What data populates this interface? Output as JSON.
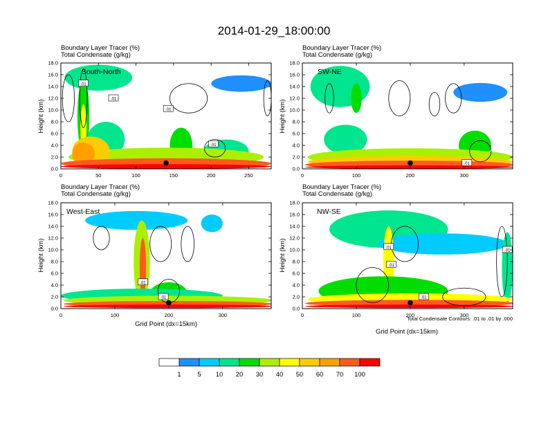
{
  "title": "2014-01-29_18:00:00",
  "colors": {
    "levels": [
      "#ffffff",
      "#1e90ff",
      "#00ccff",
      "#00e58e",
      "#00dd00",
      "#aaf000",
      "#ffff00",
      "#ffcc00",
      "#ffa000",
      "#ff5a1e",
      "#ff0000"
    ],
    "contour": "#000000",
    "frame": "#000000"
  },
  "chart_data": [
    {
      "type": "heatmap",
      "name": "South-North",
      "title_lines": [
        "Boundary Layer Tracer   (%)",
        "Total Condensate   (g/kg)"
      ],
      "region_label": "South-North",
      "xlim": [
        0,
        280
      ],
      "xticks": [
        0,
        50,
        100,
        150,
        200,
        250
      ],
      "ylim": [
        0,
        18
      ],
      "yticks": [
        "0.0",
        "2.0",
        "4.0",
        "6.0",
        "8.0",
        "10.0",
        "12.0",
        "14.0",
        "16.0",
        "18.0"
      ],
      "ylabel": "Height (km)",
      "xlabel": "",
      "contour_labels": [
        {
          "x": 30,
          "y": 14.5,
          "text": ".01"
        },
        {
          "x": 70,
          "y": 12.0,
          "text": ".01"
        },
        {
          "x": 143,
          "y": 10.2,
          "text": ".01"
        },
        {
          "x": 203,
          "y": 4.2,
          "text": ".01"
        }
      ],
      "marker": {
        "x": 140,
        "y": 1.0
      },
      "blobs": [
        {
          "c": 3,
          "x": 50,
          "y": 15.5,
          "rx": 45,
          "ry": 2.2
        },
        {
          "c": 1,
          "x": 240,
          "y": 14.5,
          "rx": 40,
          "ry": 1.4
        },
        {
          "c": 4,
          "x": 30,
          "y": 9,
          "rx": 8,
          "ry": 6
        },
        {
          "c": 6,
          "x": 30,
          "y": 7,
          "rx": 4,
          "ry": 4
        },
        {
          "c": 3,
          "x": 60,
          "y": 5,
          "rx": 25,
          "ry": 3
        },
        {
          "c": 4,
          "x": 160,
          "y": 4,
          "rx": 15,
          "ry": 3
        },
        {
          "c": 3,
          "x": 220,
          "y": 3,
          "rx": 30,
          "ry": 2
        },
        {
          "c": 5,
          "x": 140,
          "y": 2,
          "rx": 130,
          "ry": 1.6
        },
        {
          "c": 7,
          "x": 40,
          "y": 3,
          "rx": 25,
          "ry": 2.5
        },
        {
          "c": 8,
          "x": 30,
          "y": 2.5,
          "rx": 15,
          "ry": 2
        },
        {
          "c": 9,
          "x": 140,
          "y": 0.9,
          "rx": 140,
          "ry": 0.9
        },
        {
          "c": 10,
          "x": 140,
          "y": 0.4,
          "rx": 140,
          "ry": 0.4
        }
      ],
      "contours": [
        {
          "x": 170,
          "y": 12,
          "rx": 25,
          "ry": 2.5
        },
        {
          "x": 275,
          "y": 12,
          "rx": 5,
          "ry": 3
        },
        {
          "x": 10,
          "y": 12,
          "rx": 8,
          "ry": 4
        },
        {
          "x": 205,
          "y": 3.5,
          "rx": 14,
          "ry": 1.5
        },
        {
          "x": 30,
          "y": 12,
          "rx": 5,
          "ry": 5
        }
      ]
    },
    {
      "type": "heatmap",
      "name": "SW-NE",
      "title_lines": [
        "Boundary Layer Tracer   (%)",
        "Total Condensate   (g/kg)"
      ],
      "region_label": "SW-NE",
      "xlim": [
        0,
        390
      ],
      "xticks": [
        0,
        100,
        200,
        300
      ],
      "ylim": [
        0,
        18
      ],
      "yticks": [
        "0.0",
        "2.0",
        "4.0",
        "6.0",
        "8.0",
        "10.0",
        "12.0",
        "14.0",
        "16.0",
        "18.0"
      ],
      "ylabel": "Height (km)",
      "xlabel": "",
      "contour_labels": [
        {
          "x": 305,
          "y": 1.0,
          "text": ".01"
        }
      ],
      "marker": {
        "x": 200,
        "y": 1.0
      },
      "blobs": [
        {
          "c": 3,
          "x": 70,
          "y": 14,
          "rx": 55,
          "ry": 3.5
        },
        {
          "c": 4,
          "x": 100,
          "y": 12,
          "rx": 10,
          "ry": 2.5
        },
        {
          "c": 1,
          "x": 330,
          "y": 13,
          "rx": 50,
          "ry": 1.6
        },
        {
          "c": 3,
          "x": 80,
          "y": 5,
          "rx": 40,
          "ry": 2.5
        },
        {
          "c": 4,
          "x": 320,
          "y": 4,
          "rx": 30,
          "ry": 2.5
        },
        {
          "c": 5,
          "x": 200,
          "y": 2,
          "rx": 190,
          "ry": 1.5
        },
        {
          "c": 7,
          "x": 200,
          "y": 1.2,
          "rx": 190,
          "ry": 1.0
        },
        {
          "c": 9,
          "x": 200,
          "y": 0.7,
          "rx": 195,
          "ry": 0.7
        },
        {
          "c": 10,
          "x": 200,
          "y": 0.3,
          "rx": 195,
          "ry": 0.3
        }
      ],
      "contours": [
        {
          "x": 180,
          "y": 12,
          "rx": 20,
          "ry": 3
        },
        {
          "x": 280,
          "y": 12,
          "rx": 15,
          "ry": 2.5
        },
        {
          "x": 245,
          "y": 11,
          "rx": 10,
          "ry": 2
        },
        {
          "x": 50,
          "y": 12,
          "rx": 8,
          "ry": 2.5
        },
        {
          "x": 330,
          "y": 3,
          "rx": 20,
          "ry": 1.8
        }
      ]
    },
    {
      "type": "heatmap",
      "name": "West-East",
      "title_lines": [
        "Boundary Layer Tracer   (%)",
        "Total Condensate   (g/kg)"
      ],
      "region_label": "West-East",
      "xlim": [
        0,
        390
      ],
      "xticks": [
        0,
        100,
        200,
        300
      ],
      "ylim": [
        0,
        18
      ],
      "yticks": [
        "0.0",
        "2.0",
        "4.0",
        "6.0",
        "8.0",
        "10.0",
        "12.0",
        "14.0",
        "16.0",
        "18.0"
      ],
      "ylabel": "Height (km)",
      "xlabel": "Grid Point (dx=15km)",
      "contour_labels": [
        {
          "x": 152,
          "y": 4.5,
          "text": ".01"
        },
        {
          "x": 190,
          "y": 2.0,
          "text": ".01"
        }
      ],
      "marker": {
        "x": 200,
        "y": 1.0
      },
      "blobs": [
        {
          "c": 2,
          "x": 140,
          "y": 15,
          "rx": 95,
          "ry": 1.6
        },
        {
          "c": 2,
          "x": 280,
          "y": 14.5,
          "rx": 20,
          "ry": 1.5
        },
        {
          "c": 5,
          "x": 150,
          "y": 8,
          "rx": 15,
          "ry": 7
        },
        {
          "c": 9,
          "x": 152,
          "y": 7,
          "rx": 6,
          "ry": 5
        },
        {
          "c": 4,
          "x": 200,
          "y": 2.5,
          "rx": 35,
          "ry": 2
        },
        {
          "c": 3,
          "x": 150,
          "y": 2.2,
          "rx": 150,
          "ry": 1.2
        },
        {
          "c": 5,
          "x": 200,
          "y": 1.4,
          "rx": 195,
          "ry": 0.8
        },
        {
          "c": 9,
          "x": 200,
          "y": 0.8,
          "rx": 195,
          "ry": 0.5
        },
        {
          "c": 10,
          "x": 200,
          "y": 0.4,
          "rx": 195,
          "ry": 0.3
        }
      ],
      "contours": [
        {
          "x": 75,
          "y": 12,
          "rx": 15,
          "ry": 2
        },
        {
          "x": 185,
          "y": 11,
          "rx": 20,
          "ry": 3
        },
        {
          "x": 235,
          "y": 11,
          "rx": 12,
          "ry": 3
        },
        {
          "x": 200,
          "y": 3,
          "rx": 20,
          "ry": 2
        }
      ]
    },
    {
      "type": "heatmap",
      "name": "NW-SE",
      "title_lines": [
        "Boundary Layer Tracer   (%)",
        "Total Condensate   (g/kg)"
      ],
      "region_label": "NW-SE",
      "xlim": [
        0,
        390
      ],
      "xticks": [
        0,
        100,
        200,
        300
      ],
      "ylim": [
        0,
        18
      ],
      "yticks": [
        "0.0",
        "2.0",
        "4.0",
        "6.0",
        "8.0",
        "10.0",
        "12.0",
        "14.0",
        "16.0",
        "18.0"
      ],
      "ylabel": "Height (km)",
      "xlabel": "Grid Point (dx=15km)",
      "contour_labels": [
        {
          "x": 160,
          "y": 10.5,
          "text": ".01"
        },
        {
          "x": 165,
          "y": 7.5,
          "text": ".01"
        },
        {
          "x": 225,
          "y": 2.0,
          "text": ".01"
        },
        {
          "x": 380,
          "y": 10.0,
          "text": ".01"
        }
      ],
      "marker": {
        "x": 200,
        "y": 1.0
      },
      "blobs": [
        {
          "c": 3,
          "x": 160,
          "y": 13.5,
          "rx": 110,
          "ry": 3.2
        },
        {
          "c": 2,
          "x": 260,
          "y": 11,
          "rx": 120,
          "ry": 1.8
        },
        {
          "c": 6,
          "x": 160,
          "y": 8,
          "rx": 10,
          "ry": 6
        },
        {
          "c": 3,
          "x": 380,
          "y": 7,
          "rx": 10,
          "ry": 6
        },
        {
          "c": 4,
          "x": 150,
          "y": 3,
          "rx": 120,
          "ry": 2.5
        },
        {
          "c": 6,
          "x": 200,
          "y": 1.6,
          "rx": 190,
          "ry": 1.0
        },
        {
          "c": 9,
          "x": 200,
          "y": 0.9,
          "rx": 195,
          "ry": 0.6
        },
        {
          "c": 10,
          "x": 200,
          "y": 0.4,
          "rx": 195,
          "ry": 0.3
        }
      ],
      "contours": [
        {
          "x": 190,
          "y": 11,
          "rx": 25,
          "ry": 3
        },
        {
          "x": 370,
          "y": 8,
          "rx": 10,
          "ry": 6
        },
        {
          "x": 130,
          "y": 4,
          "rx": 30,
          "ry": 3
        },
        {
          "x": 300,
          "y": 2,
          "rx": 40,
          "ry": 1.5
        }
      ],
      "note": "Total Condensate Contours: .01 to .01 by .000"
    }
  ],
  "colorbar": {
    "labels": [
      "1",
      "5",
      "10",
      "20",
      "30",
      "40",
      "50",
      "60",
      "70",
      "100"
    ]
  }
}
